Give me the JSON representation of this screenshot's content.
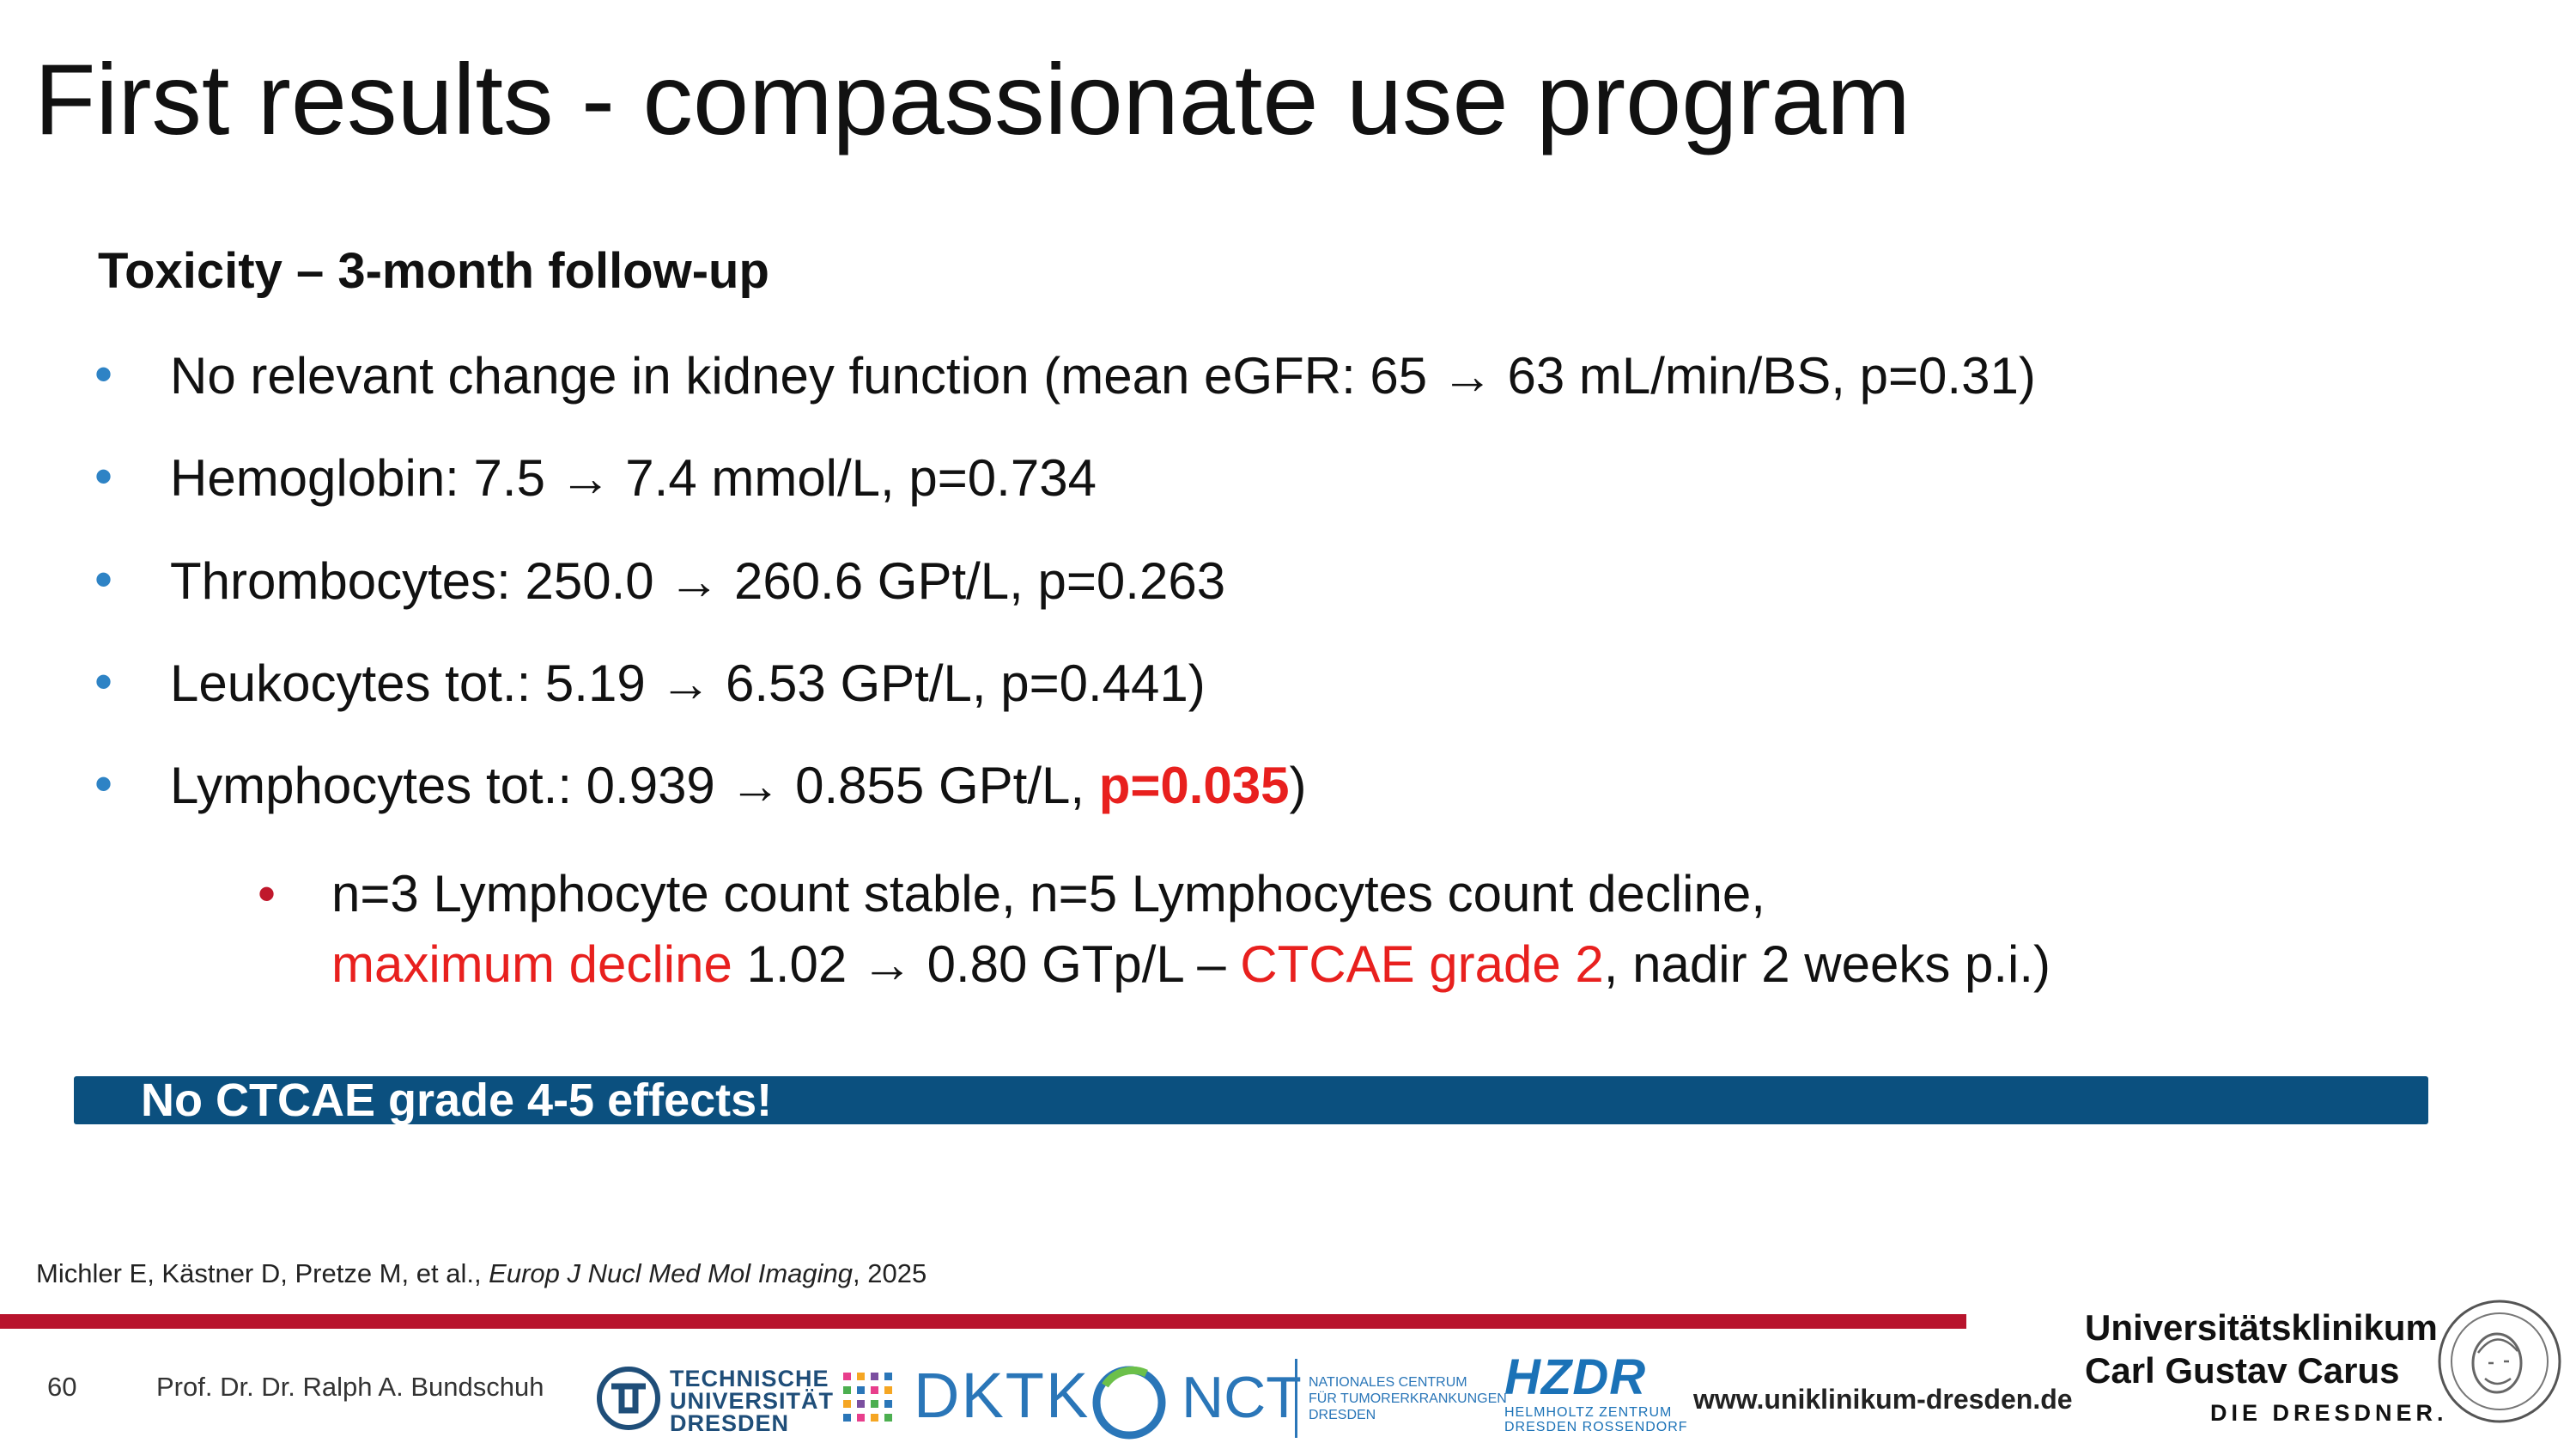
{
  "title": "First results - compassionate use program",
  "subtitle": "Toxicity – 3-month follow-up",
  "bullets": [
    {
      "text": "No relevant change in kidney function (mean eGFR: 65 → 63 mL/min/BS, p=0.31)"
    },
    {
      "text": "Hemoglobin: 7.5 → 7.4 mmol/L, p=0.734"
    },
    {
      "text": "Thrombocytes: 250.0 → 260.6 GPt/L, p=0.263"
    },
    {
      "text": "Leukocytes tot.: 5.19 → 6.53 GPt/L, p=0.441)"
    },
    {
      "text_before": "Lymphocytes tot.: 0.939 → 0.855 GPt/L, ",
      "highlight": "p=0.035",
      "text_after": ")"
    }
  ],
  "sub_bullet": {
    "line1": "n=3 Lymphocyte count stable, n=5 Lymphocytes count decline,",
    "line2_red1": "maximum decline",
    "line2_mid": " 1.02 → 0.80 GTp/L – ",
    "line2_red2": "CTCAE grade 2",
    "line2_end": ", nadir 2 weeks p.i.)"
  },
  "banner": "No CTCAE grade 4-5 effects!",
  "citation": {
    "authors": "Michler E, Kästner D, Pretze M, et al., ",
    "journal": "Europ J Nucl Med Mol Imaging",
    "year": ", 2025"
  },
  "footer": {
    "page_number": "60",
    "presenter": "Prof. Dr. Dr. Ralph A. Bundschuh",
    "logos": {
      "tud_line1": "TECHNISCHE",
      "tud_line2": "UNIVERSITÄT",
      "tud_line3": "DRESDEN",
      "dktk": "DKTK",
      "nct": "NCT",
      "nct_sub1": "NATIONALES CENTRUM",
      "nct_sub2": "FÜR TUMORERKRANKUNGEN",
      "nct_sub3": "DRESDEN",
      "hzdr": "HZDR",
      "hzdr_sub1": "HELMHOLTZ ZENTRUM",
      "hzdr_sub2": "DRESDEN ROSSENDORF"
    },
    "website": "www.uniklinikum-dresden.de",
    "ukd_line1": "Universitätsklinikum",
    "ukd_line2": "Carl Gustav Carus",
    "ukd_line3": "DIE DRESDNER."
  },
  "colors": {
    "bullet": "#2e83c5",
    "sub_bullet": "#c0182c",
    "highlight": "#e8201e",
    "banner": "#0b507f",
    "footer_line": "#b8142d",
    "logo_blue": "#2a76b8"
  },
  "icons": [
    "tud-logo-icon",
    "dktk-dots-icon",
    "nct-ring-icon",
    "carus-seal-icon"
  ]
}
